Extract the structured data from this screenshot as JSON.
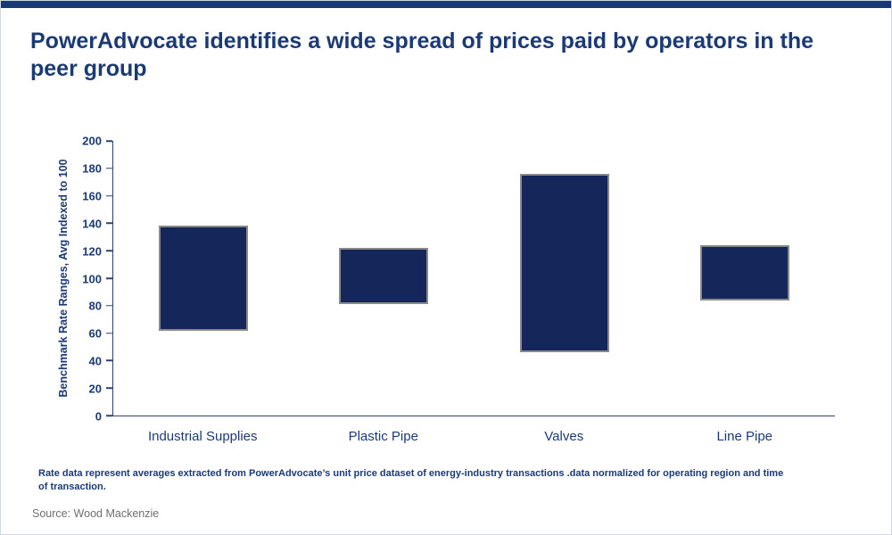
{
  "page": {
    "title": "PowerAdvocate identifies a wide spread of prices paid by operators in the peer group",
    "footnote": "Rate data represent averages extracted from PowerAdvocate’s unit price dataset of energy-industry transactions .data normalized for operating region and time of transaction.",
    "source": "Source: Wood Mackenzie"
  },
  "colors": {
    "navy_text": "#1b3a75",
    "bar_fill": "#14265a",
    "bar_border": "#8a8a8a",
    "axis": "#2c4273",
    "source_gray": "#6d6e71",
    "top_bar": "#1b3a75",
    "page_border": "#cfd8e4"
  },
  "chart_data": {
    "type": "bar",
    "subtype": "floating-range",
    "title": "PowerAdvocate identifies a wide spread of prices paid by operators in the peer group",
    "categories": [
      "Industrial Supplies",
      "Plastic Pipe",
      "Valves",
      "Line Pipe"
    ],
    "series": [
      {
        "name": "Benchmark rate range",
        "ranges": [
          [
            62,
            138
          ],
          [
            81,
            122
          ],
          [
            46,
            176
          ],
          [
            84,
            124
          ]
        ]
      }
    ],
    "xlabel": "",
    "ylabel": "Benchmark Rate Ranges, Avg Indexed to 100",
    "ylim": [
      0,
      200
    ],
    "ytick_step": 20,
    "grid": false,
    "legend": "none"
  }
}
